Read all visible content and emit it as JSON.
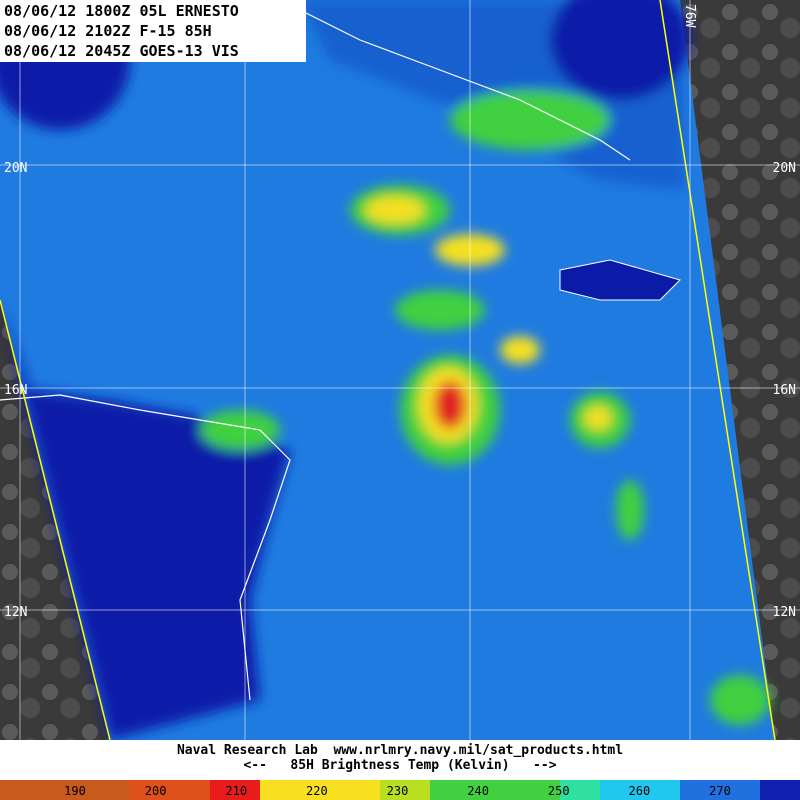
{
  "header": {
    "lines": [
      "08/06/12 1800Z 05L ERNESTO",
      "08/06/12 2102Z F-15 85H",
      "08/06/12 2045Z GOES-13 VIS"
    ]
  },
  "grid_labels": {
    "left": [
      "20N",
      "16N",
      "12N"
    ],
    "right": [
      "20N",
      "16N",
      "12N"
    ],
    "top": [
      "76W"
    ]
  },
  "footer": {
    "credit": "Naval Research Lab  www.nrlmry.navy.mil/sat_products.html",
    "caption": "<--   85H Brightness Temp (Kelvin)   -->"
  },
  "colorbar": {
    "ticks": [
      190,
      200,
      210,
      220,
      230,
      240,
      250,
      260,
      270
    ]
  }
}
